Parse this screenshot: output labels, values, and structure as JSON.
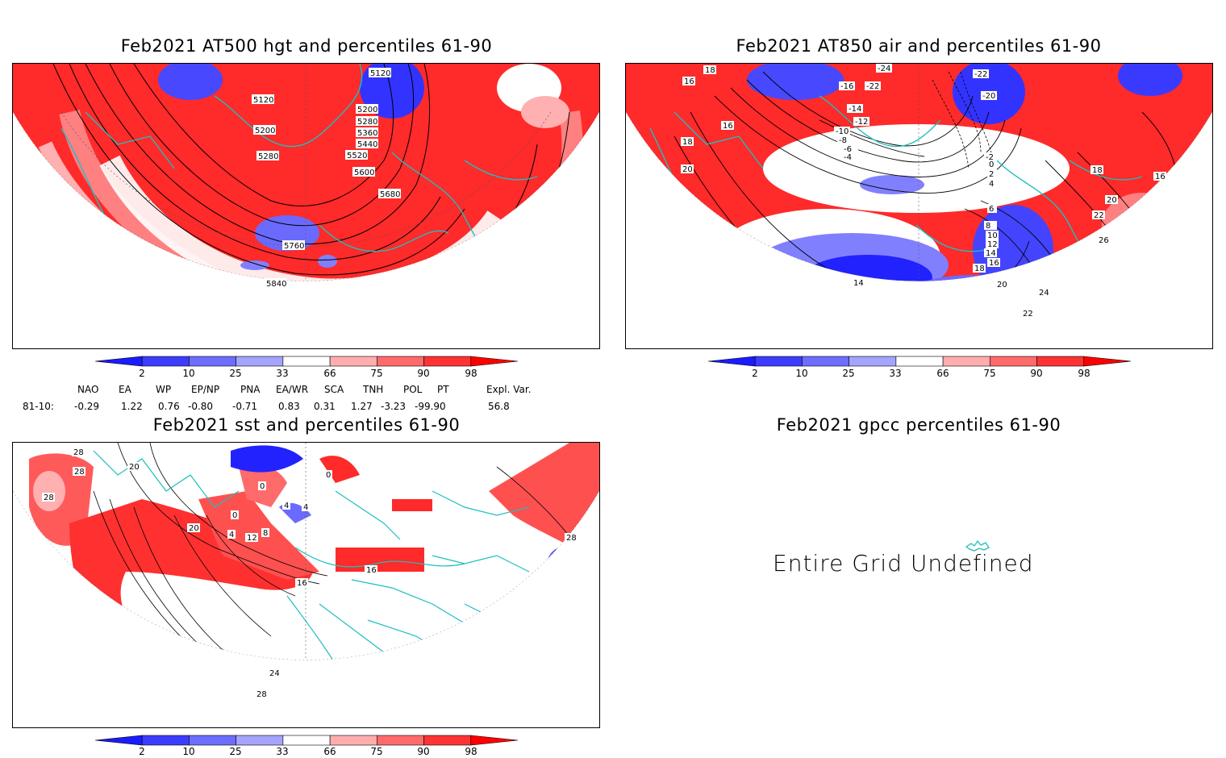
{
  "panels": {
    "hgt": {
      "title": "Feb2021 AT500 hgt and percentiles 61-90",
      "contour_labels": [
        "5120",
        "5120",
        "5200",
        "5200",
        "5280",
        "5280",
        "5360",
        "5440",
        "5520",
        "5600",
        "5680",
        "5760",
        "5840"
      ]
    },
    "air": {
      "title": "Feb2021 AT850 air and percentiles 61-90",
      "contour_labels": [
        "-24",
        "-22",
        "-22",
        "-20",
        "-16",
        "-14",
        "-12",
        "-10",
        "-8",
        "-6",
        "-4",
        "-2",
        "0",
        "2",
        "4",
        "6",
        "8",
        "10",
        "12",
        "14",
        "14",
        "16",
        "16",
        "16",
        "16",
        "18",
        "18",
        "18",
        "18",
        "20",
        "20",
        "20",
        "22",
        "22",
        "24",
        "26"
      ]
    },
    "sst": {
      "title": "Feb2021 sst and percentiles 61-90",
      "contour_labels": [
        "28",
        "28",
        "28",
        "20",
        "20",
        "0",
        "0",
        "0",
        "4",
        "4",
        "4",
        "8",
        "12",
        "16",
        "16",
        "24",
        "28",
        "28"
      ]
    },
    "gpcc": {
      "title": "Feb2021 gpcc percentiles 61-90",
      "message": "Entire Grid Undefined"
    }
  },
  "colorbar": {
    "labels": [
      "2",
      "10",
      "25",
      "33",
      "66",
      "75",
      "90",
      "98"
    ],
    "colors": [
      "#1b1bff",
      "#3c3cff",
      "#6d6dff",
      "#a4a4ff",
      "#ffffff",
      "#ffadad",
      "#ff6b6b",
      "#ff3333",
      "#ff0000"
    ]
  },
  "indices": {
    "headers": [
      "NAO",
      "EA",
      "WP",
      "EP/NP",
      "PNA",
      "EA/WR",
      "SCA",
      "TNH",
      "POL",
      "PT",
      "Expl. Var."
    ],
    "row_label": "81-10:",
    "values": [
      "-0.29",
      "1.22",
      "0.76",
      "-0.80",
      "-0.71",
      "0.83",
      "0.31",
      "1.27",
      "-3.23",
      "-99.90",
      "56.8"
    ]
  }
}
